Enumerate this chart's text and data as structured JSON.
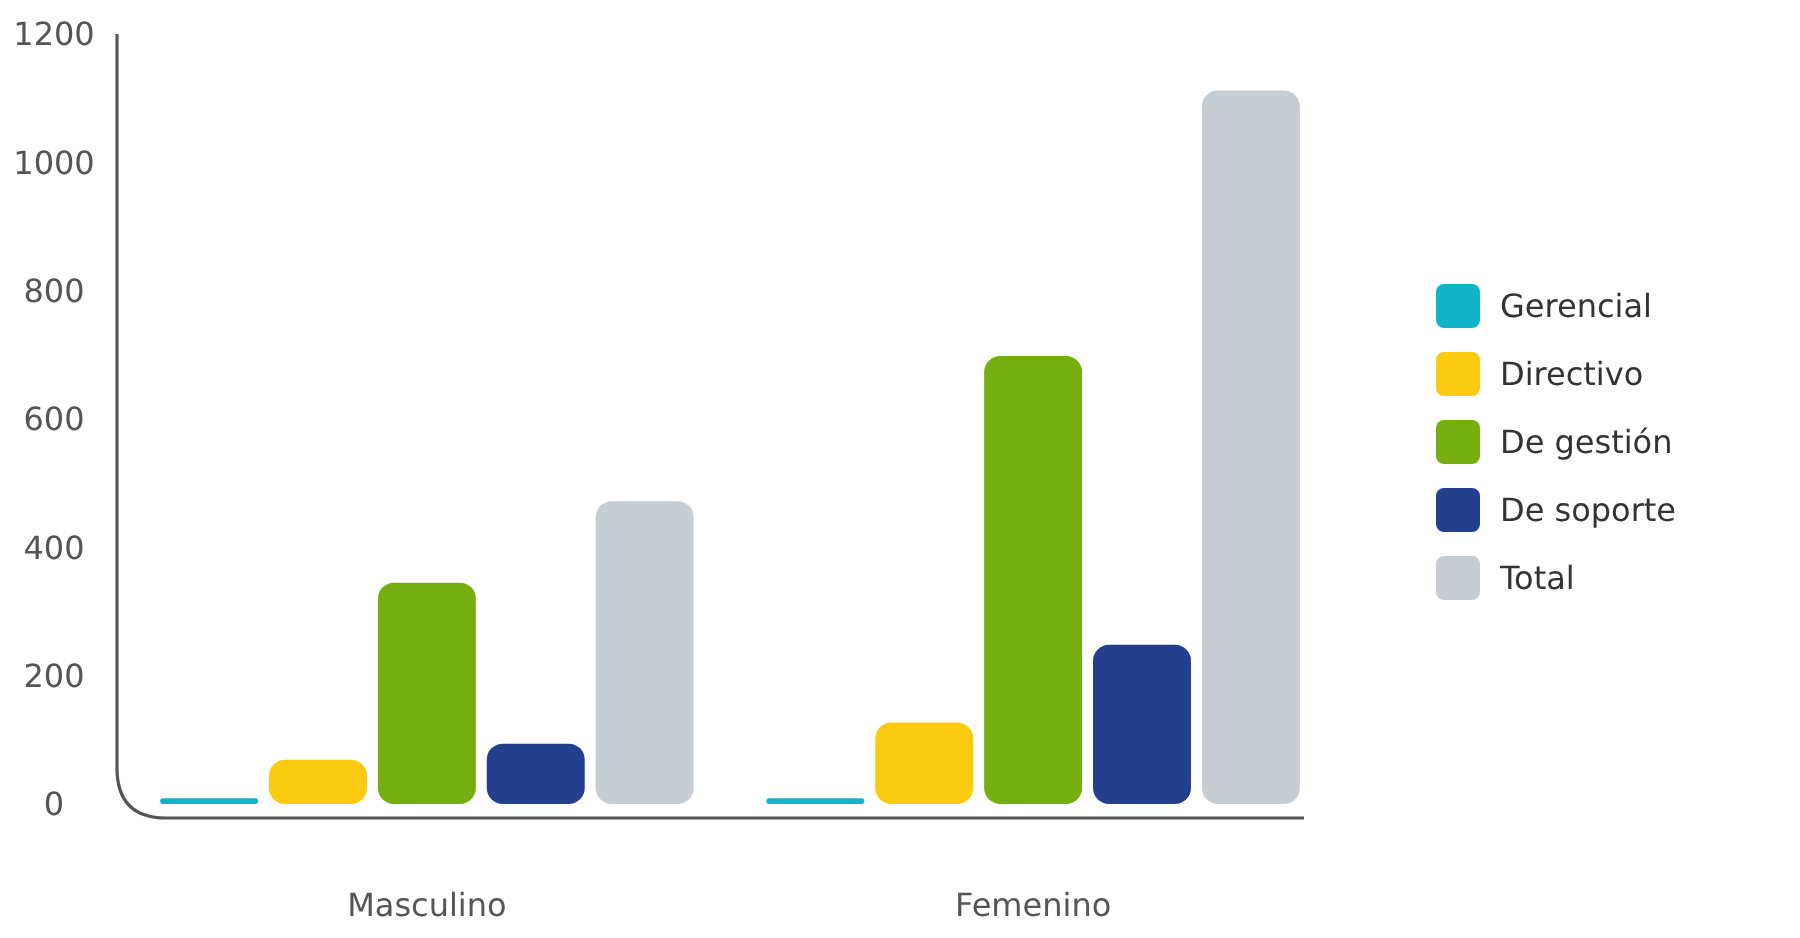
{
  "chart_data": {
    "type": "bar",
    "categories": [
      "Masculino",
      "Femenino"
    ],
    "series": [
      {
        "name": "Gerencial",
        "color": "#0fb5c6",
        "values": [
          9,
          9
        ]
      },
      {
        "name": "Directivo",
        "color": "#fdca12",
        "values": [
          69,
          127
        ]
      },
      {
        "name": "De gestión",
        "color": "#75af0f",
        "values": [
          345,
          698
        ]
      },
      {
        "name": "De soporte",
        "color": "#243f8e",
        "values": [
          94,
          248
        ]
      },
      {
        "name": "Total",
        "color": "#c6ced4",
        "values": [
          472,
          1112
        ]
      }
    ],
    "ylim": [
      0,
      1200
    ],
    "yticks": [
      0,
      200,
      400,
      600,
      800,
      1000,
      1200
    ],
    "grid": false,
    "legend": "right"
  }
}
